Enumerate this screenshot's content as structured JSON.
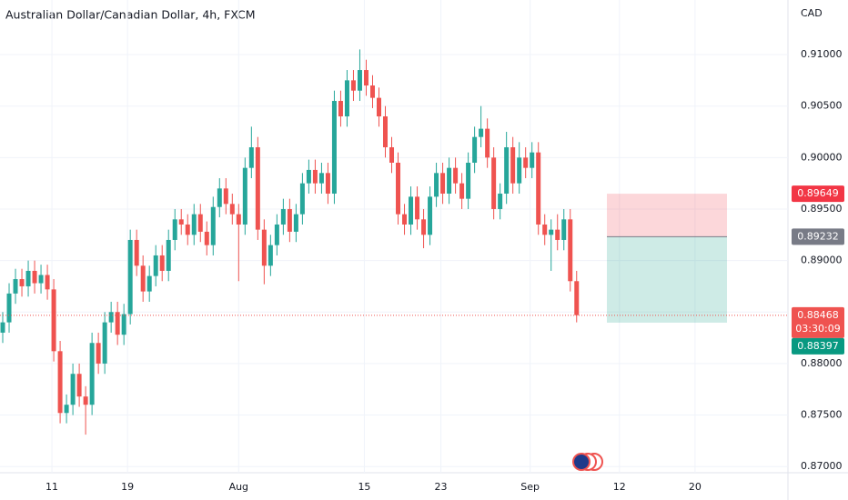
{
  "chart_data": {
    "type": "candlestick",
    "title": "Australian Dollar/Canadian Dollar, 4h, FXCM",
    "currency": "CAD",
    "up_color": "#26a69a",
    "down_color": "#ef5350",
    "grid": true,
    "x": [
      0,
      1,
      2,
      3,
      4,
      5,
      6,
      7,
      8,
      9,
      10,
      11,
      12,
      13,
      14,
      15,
      16,
      17,
      18,
      19,
      20,
      21,
      22,
      23,
      24,
      25,
      26,
      27,
      28,
      29,
      30,
      31,
      32,
      33,
      34,
      35,
      36,
      37,
      38,
      39,
      40,
      41,
      42,
      43,
      44,
      45,
      46,
      47,
      48,
      49,
      50,
      51,
      52,
      53,
      54,
      55,
      56,
      57,
      58,
      59,
      60,
      61,
      62,
      63,
      64,
      65,
      66,
      67,
      68,
      69,
      70,
      71,
      72,
      73,
      74,
      75,
      76,
      77,
      78,
      79,
      80,
      81,
      82,
      83,
      84,
      85,
      86,
      87,
      88,
      89,
      90
    ],
    "open": [
      0.883,
      0.884,
      0.8868,
      0.8882,
      0.8875,
      0.889,
      0.8878,
      0.8886,
      0.8872,
      0.8812,
      0.8752,
      0.876,
      0.879,
      0.8768,
      0.876,
      0.882,
      0.88,
      0.884,
      0.885,
      0.8828,
      0.8848,
      0.892,
      0.8895,
      0.887,
      0.8885,
      0.8905,
      0.889,
      0.892,
      0.894,
      0.8935,
      0.8925,
      0.8945,
      0.8928,
      0.8915,
      0.8952,
      0.897,
      0.8955,
      0.8945,
      0.8935,
      0.899,
      0.901,
      0.893,
      0.8895,
      0.8915,
      0.8935,
      0.895,
      0.8928,
      0.8945,
      0.8975,
      0.8988,
      0.8975,
      0.8985,
      0.8965,
      0.9055,
      0.904,
      0.9075,
      0.9065,
      0.9085,
      0.907,
      0.9058,
      0.904,
      0.901,
      0.8995,
      0.8945,
      0.8935,
      0.8962,
      0.894,
      0.8925,
      0.8962,
      0.8985,
      0.8965,
      0.899,
      0.8975,
      0.896,
      0.8995,
      0.902,
      0.9028,
      0.9,
      0.895,
      0.8965,
      0.901,
      0.8975,
      0.9,
      0.899,
      0.9005,
      0.8935,
      0.8925,
      0.893,
      0.892,
      0.894,
      0.888
    ],
    "high": [
      0.885,
      0.8878,
      0.8892,
      0.8892,
      0.89,
      0.89,
      0.8896,
      0.8896,
      0.8882,
      0.8822,
      0.877,
      0.88,
      0.88,
      0.8778,
      0.883,
      0.883,
      0.885,
      0.886,
      0.886,
      0.8858,
      0.893,
      0.893,
      0.8905,
      0.8895,
      0.8915,
      0.8915,
      0.893,
      0.895,
      0.895,
      0.8945,
      0.8955,
      0.8955,
      0.8938,
      0.8962,
      0.898,
      0.898,
      0.8965,
      0.8955,
      0.9,
      0.903,
      0.902,
      0.894,
      0.8925,
      0.8945,
      0.896,
      0.896,
      0.8955,
      0.8985,
      0.8998,
      0.8998,
      0.8995,
      0.8995,
      0.9065,
      0.9065,
      0.9085,
      0.9085,
      0.9105,
      0.9095,
      0.908,
      0.9068,
      0.905,
      0.902,
      0.9005,
      0.8955,
      0.8972,
      0.8972,
      0.895,
      0.8972,
      0.8995,
      0.8995,
      0.9,
      0.9,
      0.8985,
      0.9005,
      0.903,
      0.905,
      0.9038,
      0.901,
      0.8975,
      0.9025,
      0.902,
      0.9015,
      0.901,
      0.9015,
      0.9015,
      0.8945,
      0.894,
      0.8945,
      0.895,
      0.895,
      0.889
    ],
    "low": [
      0.882,
      0.883,
      0.8858,
      0.8865,
      0.8865,
      0.8868,
      0.8868,
      0.8862,
      0.8802,
      0.8742,
      0.8742,
      0.875,
      0.8758,
      0.8731,
      0.875,
      0.879,
      0.879,
      0.883,
      0.8818,
      0.8818,
      0.8838,
      0.8885,
      0.886,
      0.886,
      0.8875,
      0.888,
      0.888,
      0.891,
      0.8925,
      0.8915,
      0.8915,
      0.8918,
      0.8905,
      0.8905,
      0.8942,
      0.8945,
      0.8935,
      0.888,
      0.8925,
      0.898,
      0.892,
      0.8877,
      0.8885,
      0.8905,
      0.8925,
      0.8918,
      0.8918,
      0.8935,
      0.8965,
      0.8965,
      0.8965,
      0.8955,
      0.8955,
      0.903,
      0.903,
      0.9055,
      0.9055,
      0.906,
      0.9048,
      0.903,
      0.9,
      0.8985,
      0.8935,
      0.8925,
      0.8925,
      0.893,
      0.8912,
      0.8915,
      0.8952,
      0.8955,
      0.8955,
      0.8965,
      0.895,
      0.895,
      0.8985,
      0.901,
      0.899,
      0.894,
      0.894,
      0.8955,
      0.8965,
      0.8965,
      0.898,
      0.898,
      0.8925,
      0.8915,
      0.889,
      0.891,
      0.891,
      0.887,
      0.884
    ],
    "close": [
      0.884,
      0.8868,
      0.8882,
      0.8875,
      0.889,
      0.8878,
      0.8886,
      0.8872,
      0.8812,
      0.8752,
      0.876,
      0.879,
      0.8768,
      0.876,
      0.882,
      0.88,
      0.884,
      0.885,
      0.8828,
      0.8848,
      0.892,
      0.8895,
      0.887,
      0.8885,
      0.8905,
      0.889,
      0.892,
      0.894,
      0.8935,
      0.8925,
      0.8945,
      0.8928,
      0.8915,
      0.8952,
      0.897,
      0.8955,
      0.8945,
      0.8935,
      0.899,
      0.901,
      0.893,
      0.8895,
      0.8915,
      0.8935,
      0.895,
      0.8928,
      0.8945,
      0.8975,
      0.8988,
      0.8975,
      0.8985,
      0.8965,
      0.9055,
      0.904,
      0.9075,
      0.9065,
      0.9085,
      0.907,
      0.9058,
      0.904,
      0.901,
      0.8995,
      0.8945,
      0.8935,
      0.8962,
      0.894,
      0.8925,
      0.8962,
      0.8985,
      0.8965,
      0.899,
      0.8975,
      0.896,
      0.8995,
      0.902,
      0.9028,
      0.9,
      0.895,
      0.8965,
      0.901,
      0.8975,
      0.9,
      0.899,
      0.9005,
      0.8935,
      0.8925,
      0.893,
      0.892,
      0.894,
      0.888,
      0.8847
    ],
    "xlim": [
      -0.43,
      123.14
    ],
    "xticks": [
      {
        "value": 7.71,
        "label": "11"
      },
      {
        "value": 19.57,
        "label": "19"
      },
      {
        "value": 37,
        "label": "Aug"
      },
      {
        "value": 56.71,
        "label": "15"
      },
      {
        "value": 68.71,
        "label": "23"
      },
      {
        "value": 82.71,
        "label": "Sep"
      },
      {
        "value": 96.71,
        "label": "12"
      },
      {
        "value": 108.57,
        "label": "20"
      }
    ],
    "ylim": [
      0.8694,
      0.9153
    ],
    "yticks": [
      {
        "value": 0.87,
        "label": "0.87000"
      },
      {
        "value": 0.875,
        "label": "0.87500"
      },
      {
        "value": 0.88,
        "label": "0.88000"
      },
      {
        "value": 0.885,
        "label": "0.88500"
      },
      {
        "value": 0.89,
        "label": "0.89000"
      },
      {
        "value": 0.895,
        "label": "0.89500"
      },
      {
        "value": 0.9,
        "label": "0.90000"
      },
      {
        "value": 0.905,
        "label": "0.90500"
      },
      {
        "value": 0.91,
        "label": "0.91000"
      }
    ],
    "position": {
      "stop": 0.89649,
      "entry": 0.89232,
      "target": 0.88397
    },
    "last_price": 0.88468,
    "countdown": "03:30:09"
  }
}
